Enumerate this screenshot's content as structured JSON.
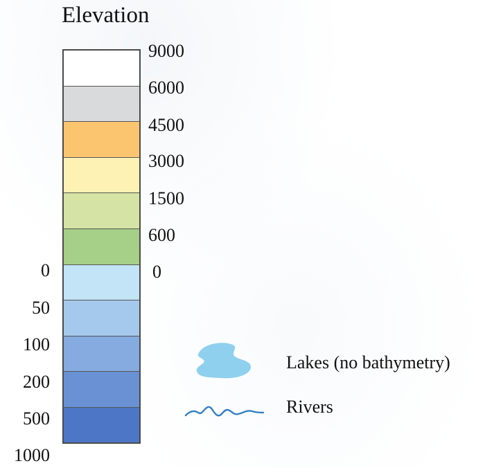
{
  "legend": {
    "title": "Elevation",
    "land_swatches": [
      {
        "label": "9000",
        "color": "#ffffff"
      },
      {
        "label": "6000",
        "color": "#d9dadb"
      },
      {
        "label": "4500",
        "color": "#fbc570"
      },
      {
        "label": "3000",
        "color": "#fdf1b4"
      },
      {
        "label": "1500",
        "color": "#d5e4a4"
      },
      {
        "label": "600",
        "color": "#a6cf88"
      }
    ],
    "water_swatches": [
      {
        "label": "0",
        "color": "#c2e4f6"
      },
      {
        "label": "50",
        "color": "#a5c9ec"
      },
      {
        "label": "100",
        "color": "#86abe0"
      },
      {
        "label": "200",
        "color": "#6a91d4"
      },
      {
        "label": "500",
        "color": "#4e76c6"
      }
    ],
    "right_ticks": [
      "9000",
      "6000",
      "4500",
      "3000",
      "1500",
      "600",
      "0"
    ],
    "left_ticks": [
      "0",
      "50",
      "100",
      "200",
      "500",
      "1000"
    ],
    "features": [
      {
        "label": "Lakes  (no bathymetry)",
        "icon": "lake-icon",
        "color": "#8fd0ee"
      },
      {
        "label": "Rivers",
        "icon": "river-icon",
        "color": "#2f7fc4"
      }
    ]
  }
}
